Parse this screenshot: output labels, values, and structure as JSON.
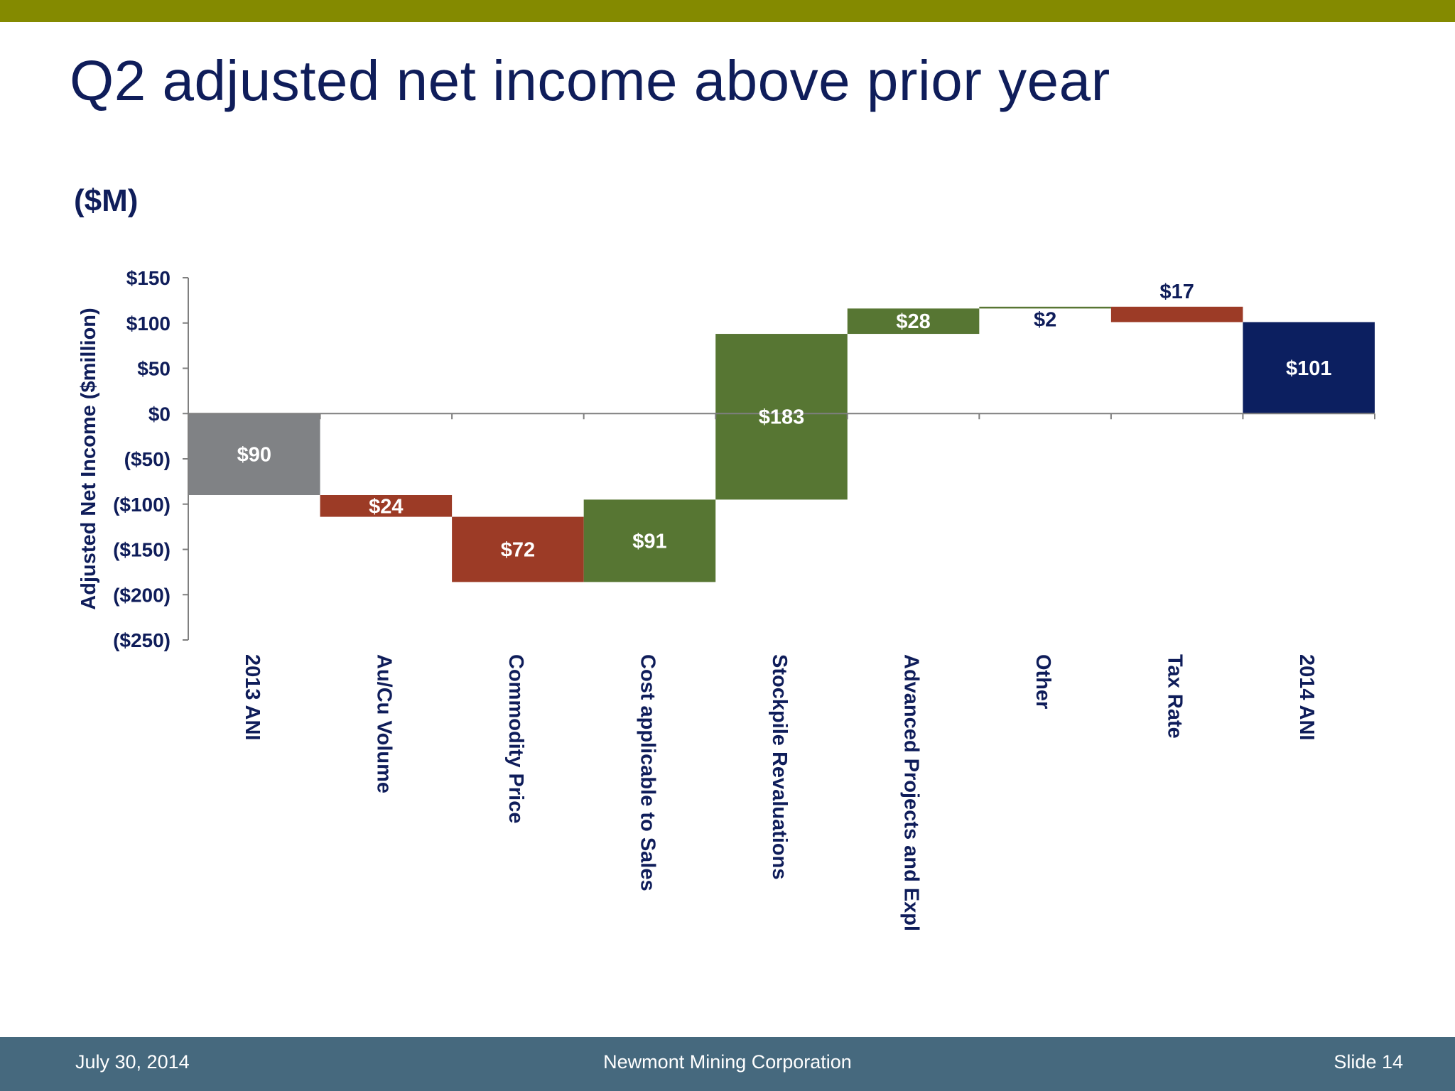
{
  "theme": {
    "top_bar_color": "#848a00",
    "footer_color": "#46697e",
    "title_color": "#0f1d5a",
    "baseline_color": "#7f7f7f",
    "total_start_color": "#808285",
    "increase_color": "#577633",
    "decrease_color": "#9c3b26",
    "total_end_color": "#0c1f60"
  },
  "slide": {
    "title": "Q2 adjusted net income above prior year",
    "unit_label": "($M)"
  },
  "footer": {
    "date": "July 30, 2014",
    "company": "Newmont Mining Corporation",
    "slide_number": "Slide 14"
  },
  "chart_data": {
    "type": "bar",
    "subtype": "waterfall",
    "title": "",
    "xlabel": "",
    "ylabel": "Adjusted Net Income ($million)",
    "ylim": [
      -250,
      150
    ],
    "yticks": [
      150,
      100,
      50,
      0,
      -50,
      -100,
      -150,
      -200,
      -250
    ],
    "ytick_labels": [
      "$150",
      "$100",
      "$50",
      "$0",
      "($50)",
      "($100)",
      "($150)",
      "($200)",
      "($250)"
    ],
    "grid": false,
    "legend": "none",
    "categories": [
      "2013 ANI",
      "Au/Cu Volume",
      "Commodity Price",
      "Cost applicable to Sales",
      "Stockpile Revaluations",
      "Advanced Projects and Expl",
      "Other",
      "Tax Rate",
      "2014 ANI"
    ],
    "values": [
      -90,
      -24,
      -72,
      91,
      183,
      28,
      2,
      -17,
      101
    ],
    "kinds": [
      "total",
      "decrease",
      "decrease",
      "increase",
      "increase",
      "increase",
      "increase",
      "decrease",
      "total"
    ],
    "data_labels": [
      "$90",
      "$24",
      "$72",
      "$91",
      "$183",
      "$28",
      "$2",
      "$17",
      "$101"
    ]
  }
}
